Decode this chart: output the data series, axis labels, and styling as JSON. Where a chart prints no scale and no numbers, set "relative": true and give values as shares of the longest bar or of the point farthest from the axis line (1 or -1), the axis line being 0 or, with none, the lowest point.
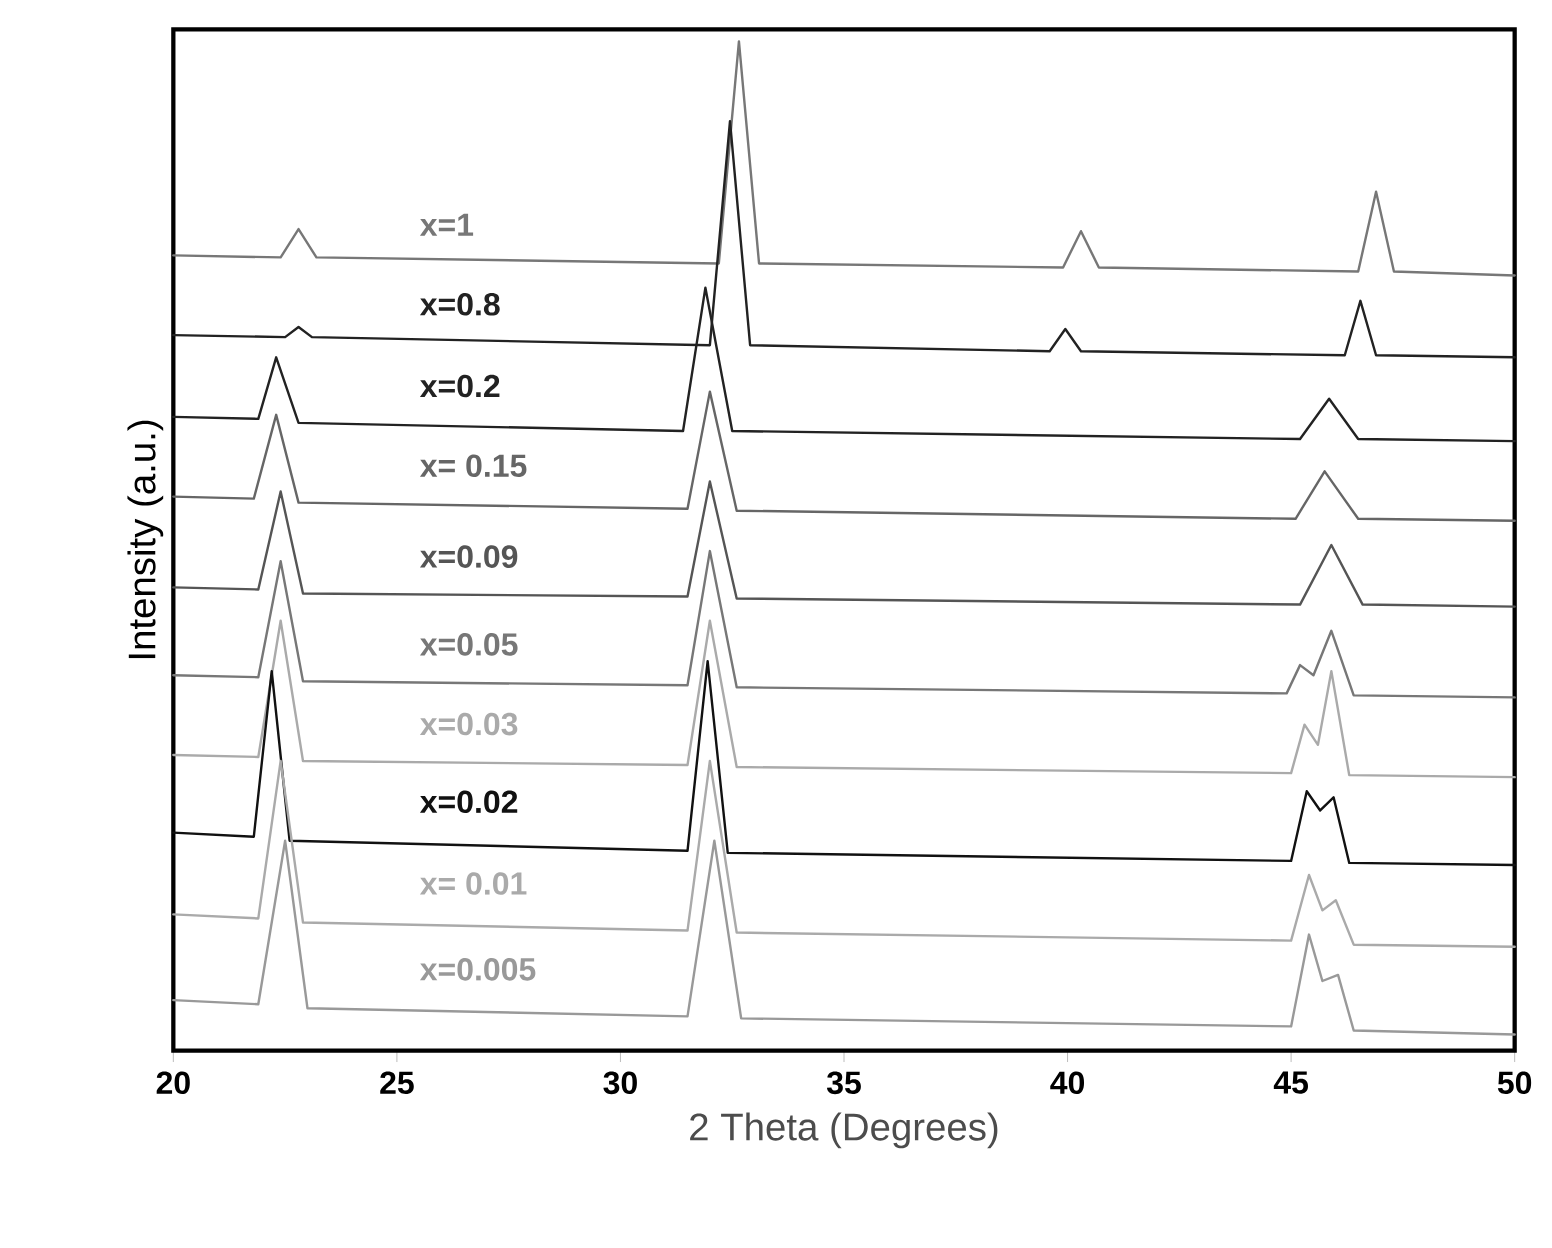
{
  "chart_data": {
    "type": "line",
    "relative": true,
    "xlabel": "2 Theta (Degrees)",
    "ylabel": "Intensity (a.u.)",
    "xlim": [
      20,
      50
    ],
    "xticks": [
      20,
      25,
      30,
      35,
      40,
      45,
      50
    ],
    "grid": false,
    "marker": "none",
    "line_style": "solid",
    "series": [
      {
        "name": "x=1",
        "color": "#777777",
        "x": [
          20,
          22.4,
          22.8,
          23.2,
          32.2,
          32.65,
          33.1,
          39.9,
          40.3,
          40.7,
          46.5,
          46.9,
          47.3,
          50
        ],
        "values": [
          0.788,
          0.786,
          0.814,
          0.786,
          0.78,
          1,
          0.78,
          0.776,
          0.812,
          0.776,
          0.772,
          0.851,
          0.772,
          0.768
        ]
      },
      {
        "name": "x=0.8",
        "color": "#222222",
        "x": [
          20,
          22.5,
          22.8,
          23.1,
          32.0,
          32.45,
          32.9,
          39.6,
          39.95,
          40.3,
          46.2,
          46.55,
          46.9,
          50
        ],
        "values": [
          0.709,
          0.707,
          0.717,
          0.707,
          0.699,
          0.921,
          0.699,
          0.693,
          0.715,
          0.693,
          0.689,
          0.743,
          0.689,
          0.687
        ]
      },
      {
        "name": "x=0.2",
        "color": "#222222",
        "x": [
          20,
          21.9,
          22.3,
          22.8,
          31.4,
          31.9,
          32.5,
          45.2,
          45.85,
          46.5,
          50
        ],
        "values": [
          0.628,
          0.626,
          0.687,
          0.622,
          0.614,
          0.756,
          0.614,
          0.606,
          0.646,
          0.606,
          0.604
        ]
      },
      {
        "name": "x= 0.15",
        "color": "#666666",
        "x": [
          20,
          21.8,
          22.3,
          22.8,
          31.5,
          32.0,
          32.6,
          45.1,
          45.75,
          46.5,
          50
        ],
        "values": [
          0.549,
          0.547,
          0.63,
          0.543,
          0.537,
          0.653,
          0.535,
          0.527,
          0.574,
          0.527,
          0.525
        ]
      },
      {
        "name": "x=0.09",
        "color": "#555555",
        "x": [
          20,
          21.9,
          22.4,
          22.9,
          31.5,
          32.0,
          32.6,
          45.2,
          45.9,
          46.6,
          50
        ],
        "values": [
          0.459,
          0.457,
          0.554,
          0.453,
          0.45,
          0.564,
          0.448,
          0.442,
          0.501,
          0.442,
          0.44
        ]
      },
      {
        "name": "x=0.05",
        "color": "#777777",
        "x": [
          20,
          21.9,
          22.4,
          22.9,
          31.5,
          32.0,
          32.6,
          44.9,
          45.2,
          45.5,
          45.9,
          46.4,
          50
        ],
        "values": [
          0.372,
          0.37,
          0.485,
          0.366,
          0.362,
          0.495,
          0.36,
          0.354,
          0.382,
          0.372,
          0.416,
          0.352,
          0.35
        ]
      },
      {
        "name": "x=0.03",
        "color": "#aaaaaa",
        "x": [
          20,
          21.9,
          22.4,
          22.9,
          31.5,
          32.0,
          32.6,
          45.0,
          45.3,
          45.6,
          45.9,
          46.3,
          50
        ],
        "values": [
          0.293,
          0.291,
          0.426,
          0.287,
          0.283,
          0.426,
          0.281,
          0.275,
          0.323,
          0.303,
          0.376,
          0.273,
          0.271
        ]
      },
      {
        "name": "x=0.02",
        "color": "#111111",
        "x": [
          20,
          21.8,
          22.2,
          22.6,
          31.5,
          31.95,
          32.4,
          45.0,
          45.35,
          45.65,
          45.95,
          46.3,
          50
        ],
        "values": [
          0.216,
          0.212,
          0.376,
          0.208,
          0.198,
          0.386,
          0.196,
          0.188,
          0.257,
          0.238,
          0.251,
          0.186,
          0.184
        ]
      },
      {
        "name": "x= 0.01",
        "color": "#aaaaaa",
        "x": [
          20,
          21.9,
          22.4,
          22.9,
          31.5,
          32.0,
          32.6,
          45.0,
          45.4,
          45.7,
          46.0,
          46.4,
          50
        ],
        "values": [
          0.135,
          0.131,
          0.287,
          0.127,
          0.119,
          0.287,
          0.117,
          0.109,
          0.174,
          0.139,
          0.149,
          0.105,
          0.103
        ]
      },
      {
        "name": "x=0.005",
        "color": "#999999",
        "x": [
          20,
          21.9,
          22.5,
          23.0,
          31.5,
          32.1,
          32.7,
          45.0,
          45.4,
          45.7,
          46.05,
          46.4,
          50
        ],
        "values": [
          0.05,
          0.046,
          0.208,
          0.042,
          0.034,
          0.208,
          0.032,
          0.024,
          0.115,
          0.069,
          0.075,
          0.02,
          0.016
        ]
      }
    ]
  }
}
